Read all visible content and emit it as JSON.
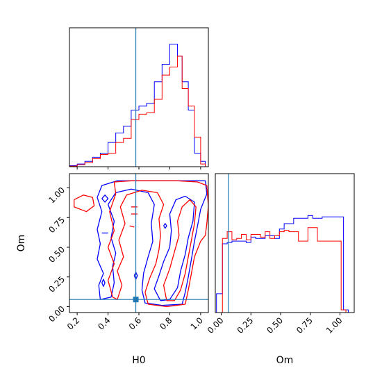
{
  "chart_data": {
    "type": "corner",
    "parameters": [
      "H0",
      "Om"
    ],
    "truth": {
      "H0": 0.58,
      "Om": 0.06
    },
    "colors": {
      "series_a": "#0000ff",
      "series_b": "#ff0000",
      "truth": "#1f77b4"
    },
    "H0_axis": {
      "xlabel": "H0",
      "xlim": [
        0.15,
        1.05
      ],
      "ticks": [
        0.2,
        0.4,
        0.6,
        0.8,
        1.0
      ],
      "tick_labels": [
        "0.2",
        "0.4",
        "0.6",
        "0.8",
        "1.0"
      ]
    },
    "Om_axis": {
      "xlabel": "Om",
      "ylabel": "Om",
      "lim": [
        -0.05,
        1.12
      ],
      "ticks": [
        0.0,
        0.25,
        0.5,
        0.75,
        1.0
      ],
      "tick_labels": [
        "0.00",
        "0.25",
        "0.50",
        "0.75",
        "1.00"
      ]
    },
    "hist_H0": {
      "ylim": [
        0,
        1
      ],
      "series": [
        {
          "key": "series_a",
          "bins": [
            [
              0.15,
              0.2,
              0.008
            ],
            [
              0.2,
              0.25,
              0.02
            ],
            [
              0.25,
              0.3,
              0.04
            ],
            [
              0.3,
              0.35,
              0.07
            ],
            [
              0.35,
              0.4,
              0.1
            ],
            [
              0.4,
              0.45,
              0.18
            ],
            [
              0.45,
              0.5,
              0.25
            ],
            [
              0.5,
              0.55,
              0.3
            ],
            [
              0.55,
              0.6,
              0.42
            ],
            [
              0.6,
              0.65,
              0.45
            ],
            [
              0.65,
              0.7,
              0.47
            ],
            [
              0.7,
              0.75,
              0.63
            ],
            [
              0.75,
              0.8,
              0.76
            ],
            [
              0.8,
              0.85,
              0.91
            ],
            [
              0.85,
              0.88,
              0.82
            ],
            [
              0.88,
              0.92,
              0.63
            ],
            [
              0.92,
              0.96,
              0.42
            ],
            [
              0.96,
              1.0,
              0.1
            ],
            [
              1.0,
              1.03,
              0.04
            ]
          ]
        },
        {
          "key": "series_b",
          "bins": [
            [
              0.15,
              0.2,
              0.004
            ],
            [
              0.2,
              0.25,
              0.015
            ],
            [
              0.25,
              0.3,
              0.03
            ],
            [
              0.3,
              0.35,
              0.06
            ],
            [
              0.35,
              0.4,
              0.09
            ],
            [
              0.4,
              0.45,
              0.1
            ],
            [
              0.45,
              0.5,
              0.18
            ],
            [
              0.5,
              0.55,
              0.21
            ],
            [
              0.55,
              0.6,
              0.35
            ],
            [
              0.6,
              0.65,
              0.39
            ],
            [
              0.65,
              0.7,
              0.4
            ],
            [
              0.7,
              0.75,
              0.5
            ],
            [
              0.75,
              0.8,
              0.68
            ],
            [
              0.8,
              0.85,
              0.74
            ],
            [
              0.85,
              0.88,
              0.82
            ],
            [
              0.88,
              0.92,
              0.58
            ],
            [
              0.92,
              0.96,
              0.45
            ],
            [
              0.96,
              1.0,
              0.22
            ],
            [
              1.0,
              1.03,
              0.02
            ]
          ]
        }
      ]
    },
    "hist_Om": {
      "xlim": [
        -0.05,
        1.12
      ],
      "ylim": [
        0,
        1
      ],
      "series": [
        {
          "key": "series_a",
          "bins": [
            [
              -0.04,
              0.01,
              0.14
            ],
            [
              0.01,
              0.05,
              0.51
            ],
            [
              0.05,
              0.09,
              0.52
            ],
            [
              0.09,
              0.13,
              0.53
            ],
            [
              0.13,
              0.17,
              0.53
            ],
            [
              0.17,
              0.21,
              0.53
            ],
            [
              0.21,
              0.25,
              0.52
            ],
            [
              0.25,
              0.29,
              0.56
            ],
            [
              0.29,
              0.33,
              0.55
            ],
            [
              0.33,
              0.37,
              0.55
            ],
            [
              0.37,
              0.41,
              0.57
            ],
            [
              0.41,
              0.45,
              0.57
            ],
            [
              0.45,
              0.49,
              0.55
            ],
            [
              0.49,
              0.53,
              0.62
            ],
            [
              0.53,
              0.57,
              0.66
            ],
            [
              0.57,
              0.61,
              0.66
            ],
            [
              0.61,
              0.65,
              0.7
            ],
            [
              0.65,
              0.69,
              0.7
            ],
            [
              0.69,
              0.73,
              0.7
            ],
            [
              0.73,
              0.77,
              0.72
            ],
            [
              0.77,
              0.81,
              0.7
            ],
            [
              0.81,
              0.85,
              0.7
            ],
            [
              0.85,
              0.89,
              0.71
            ],
            [
              0.89,
              0.93,
              0.71
            ],
            [
              0.93,
              0.97,
              0.71
            ],
            [
              0.97,
              1.03,
              0.71
            ],
            [
              1.03,
              1.07,
              0.02
            ]
          ]
        },
        {
          "key": "series_b",
          "bins": [
            [
              0.01,
              0.05,
              0.55
            ],
            [
              0.05,
              0.09,
              0.6
            ],
            [
              0.09,
              0.13,
              0.54
            ],
            [
              0.13,
              0.17,
              0.55
            ],
            [
              0.17,
              0.21,
              0.58
            ],
            [
              0.21,
              0.25,
              0.54
            ],
            [
              0.25,
              0.29,
              0.58
            ],
            [
              0.29,
              0.33,
              0.58
            ],
            [
              0.33,
              0.37,
              0.56
            ],
            [
              0.37,
              0.41,
              0.6
            ],
            [
              0.41,
              0.45,
              0.55
            ],
            [
              0.45,
              0.49,
              0.57
            ],
            [
              0.49,
              0.53,
              0.6
            ],
            [
              0.53,
              0.57,
              0.61
            ],
            [
              0.57,
              0.61,
              0.6
            ],
            [
              0.61,
              0.65,
              0.6
            ],
            [
              0.65,
              0.69,
              0.53
            ],
            [
              0.69,
              0.73,
              0.53
            ],
            [
              0.73,
              0.77,
              0.63
            ],
            [
              0.77,
              0.81,
              0.63
            ],
            [
              0.81,
              0.85,
              0.53
            ],
            [
              0.85,
              0.89,
              0.53
            ],
            [
              0.89,
              0.93,
              0.53
            ],
            [
              0.93,
              0.97,
              0.53
            ],
            [
              0.97,
              1.01,
              0.53
            ],
            [
              1.01,
              1.05,
              0.02
            ]
          ]
        }
      ]
    },
    "contours": [
      {
        "key": "series_a",
        "points": [
          [
            0.35,
            0.06
          ],
          [
            0.34,
            0.18
          ],
          [
            0.37,
            0.28
          ],
          [
            0.33,
            0.4
          ],
          [
            0.35,
            0.53
          ],
          [
            0.33,
            0.65
          ],
          [
            0.36,
            0.8
          ],
          [
            0.33,
            0.92
          ],
          [
            0.36,
            1.02
          ],
          [
            0.46,
            1.06
          ],
          [
            0.6,
            1.06
          ],
          [
            0.75,
            1.06
          ],
          [
            0.9,
            1.06
          ],
          [
            1.03,
            1.06
          ],
          [
            1.04,
            0.95
          ],
          [
            1.0,
            0.82
          ],
          [
            0.98,
            0.68
          ],
          [
            0.96,
            0.55
          ],
          [
            0.94,
            0.4
          ],
          [
            0.92,
            0.25
          ],
          [
            0.9,
            0.12
          ],
          [
            0.88,
            0.02
          ],
          [
            0.75,
            0.01
          ],
          [
            0.64,
            0.03
          ],
          [
            0.62,
            0.14
          ],
          [
            0.63,
            0.28
          ],
          [
            0.66,
            0.42
          ],
          [
            0.69,
            0.55
          ],
          [
            0.68,
            0.7
          ],
          [
            0.7,
            0.86
          ],
          [
            0.66,
            0.96
          ],
          [
            0.55,
            0.99
          ],
          [
            0.45,
            0.96
          ],
          [
            0.4,
            0.86
          ],
          [
            0.44,
            0.72
          ],
          [
            0.42,
            0.58
          ],
          [
            0.45,
            0.45
          ],
          [
            0.43,
            0.34
          ],
          [
            0.44,
            0.2
          ],
          [
            0.42,
            0.08
          ],
          [
            0.35,
            0.06
          ]
        ]
      },
      {
        "key": "series_a",
        "points": [
          [
            0.74,
            0.05
          ],
          [
            0.7,
            0.15
          ],
          [
            0.73,
            0.26
          ],
          [
            0.76,
            0.38
          ],
          [
            0.8,
            0.5
          ],
          [
            0.81,
            0.64
          ],
          [
            0.8,
            0.78
          ],
          [
            0.84,
            0.9
          ],
          [
            0.9,
            0.93
          ],
          [
            0.96,
            0.88
          ],
          [
            0.95,
            0.72
          ],
          [
            0.92,
            0.58
          ],
          [
            0.9,
            0.44
          ],
          [
            0.87,
            0.3
          ],
          [
            0.85,
            0.16
          ],
          [
            0.8,
            0.06
          ],
          [
            0.74,
            0.05
          ]
        ]
      },
      {
        "key": "series_a",
        "points": [
          [
            0.36,
            0.62
          ],
          [
            0.4,
            0.62
          ]
        ]
      },
      {
        "key": "series_a",
        "points": [
          [
            0.36,
            0.2
          ],
          [
            0.37,
            0.17
          ],
          [
            0.38,
            0.2
          ],
          [
            0.37,
            0.23
          ],
          [
            0.36,
            0.2
          ]
        ]
      },
      {
        "key": "series_a",
        "points": [
          [
            0.57,
            0.26
          ],
          [
            0.58,
            0.23
          ],
          [
            0.59,
            0.26
          ],
          [
            0.58,
            0.29
          ],
          [
            0.57,
            0.26
          ]
        ]
      },
      {
        "key": "series_a",
        "points": [
          [
            0.36,
            0.91
          ],
          [
            0.38,
            0.88
          ],
          [
            0.4,
            0.91
          ],
          [
            0.38,
            0.94
          ],
          [
            0.36,
            0.91
          ]
        ]
      },
      {
        "key": "series_a",
        "points": [
          [
            0.76,
            0.68
          ],
          [
            0.77,
            0.66
          ],
          [
            0.78,
            0.68
          ],
          [
            0.77,
            0.7
          ],
          [
            0.76,
            0.68
          ]
        ]
      },
      {
        "key": "series_b",
        "points": [
          [
            0.43,
            0.08
          ],
          [
            0.4,
            0.22
          ],
          [
            0.44,
            0.36
          ],
          [
            0.4,
            0.5
          ],
          [
            0.44,
            0.64
          ],
          [
            0.41,
            0.8
          ],
          [
            0.45,
            0.95
          ],
          [
            0.44,
            1.05
          ],
          [
            0.55,
            1.06
          ],
          [
            0.7,
            1.06
          ],
          [
            0.85,
            1.06
          ],
          [
            0.98,
            1.05
          ],
          [
            1.04,
            1.02
          ],
          [
            1.05,
            0.85
          ],
          [
            1.04,
            0.7
          ],
          [
            1.03,
            0.6
          ],
          [
            1.0,
            0.55
          ],
          [
            0.96,
            0.42
          ],
          [
            0.94,
            0.28
          ],
          [
            0.92,
            0.14
          ],
          [
            0.9,
            0.02
          ],
          [
            0.78,
            0.0
          ],
          [
            0.66,
            0.02
          ],
          [
            0.64,
            0.12
          ],
          [
            0.67,
            0.24
          ],
          [
            0.71,
            0.36
          ],
          [
            0.73,
            0.48
          ],
          [
            0.74,
            0.6
          ],
          [
            0.73,
            0.74
          ],
          [
            0.76,
            0.86
          ],
          [
            0.72,
            0.96
          ],
          [
            0.62,
            0.98
          ],
          [
            0.52,
            0.94
          ],
          [
            0.48,
            0.84
          ],
          [
            0.51,
            0.7
          ],
          [
            0.47,
            0.56
          ],
          [
            0.5,
            0.42
          ],
          [
            0.46,
            0.3
          ],
          [
            0.49,
            0.18
          ],
          [
            0.46,
            0.06
          ],
          [
            0.43,
            0.08
          ]
        ]
      },
      {
        "key": "series_b",
        "points": [
          [
            0.78,
            0.05
          ],
          [
            0.76,
            0.18
          ],
          [
            0.8,
            0.32
          ],
          [
            0.83,
            0.46
          ],
          [
            0.86,
            0.6
          ],
          [
            0.85,
            0.72
          ],
          [
            0.88,
            0.84
          ],
          [
            0.93,
            0.9
          ],
          [
            0.97,
            0.84
          ],
          [
            0.96,
            0.7
          ],
          [
            0.94,
            0.56
          ],
          [
            0.92,
            0.42
          ],
          [
            0.9,
            0.28
          ],
          [
            0.87,
            0.14
          ],
          [
            0.83,
            0.05
          ],
          [
            0.78,
            0.05
          ]
        ]
      },
      {
        "key": "series_b",
        "points": [
          [
            0.18,
            0.9
          ],
          [
            0.24,
            0.94
          ],
          [
            0.3,
            0.92
          ],
          [
            0.31,
            0.85
          ],
          [
            0.26,
            0.8
          ],
          [
            0.18,
            0.84
          ],
          [
            0.18,
            0.9
          ]
        ]
      },
      {
        "key": "series_b",
        "points": [
          [
            0.55,
            0.84
          ],
          [
            0.59,
            0.84
          ]
        ]
      },
      {
        "key": "series_b",
        "points": [
          [
            0.55,
            0.78
          ],
          [
            0.59,
            0.78
          ]
        ]
      },
      {
        "key": "series_b",
        "points": [
          [
            0.54,
            0.68
          ],
          [
            0.57,
            0.67
          ]
        ]
      }
    ]
  }
}
